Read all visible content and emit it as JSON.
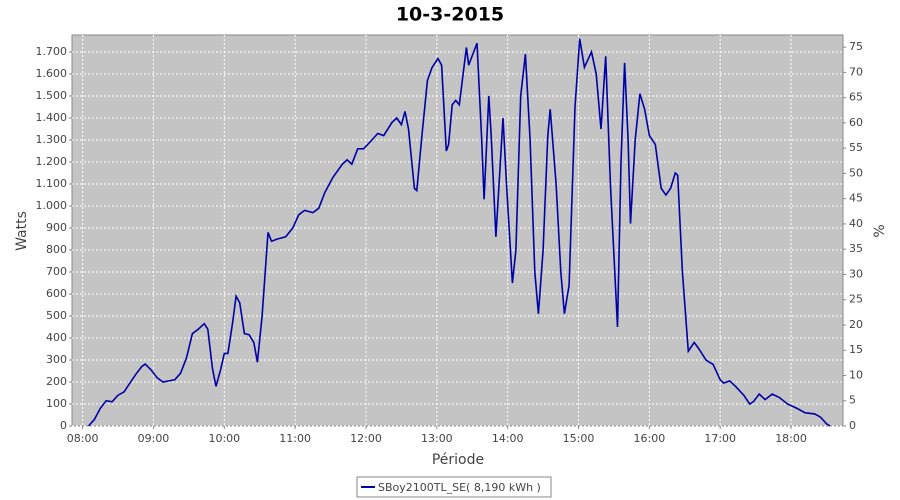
{
  "chart_data": {
    "type": "line",
    "title": "10-3-2015",
    "x_label": "Période",
    "y_label": "Watts",
    "y2_label": "%",
    "grid": true,
    "legend": "bottom",
    "xlim": [
      "07:51",
      "18:44"
    ],
    "xticks": [
      "08:00",
      "09:00",
      "10:00",
      "11:00",
      "12:00",
      "13:00",
      "14:00",
      "15:00",
      "16:00",
      "17:00",
      "18:00"
    ],
    "ylim": [
      0,
      1777
    ],
    "yticks": [
      0,
      100,
      200,
      300,
      400,
      500,
      600,
      700,
      800,
      900,
      {
        "value": 1000,
        "label": "1.000"
      },
      {
        "value": 1100,
        "label": "1.100"
      },
      {
        "value": 1200,
        "label": "1.200"
      },
      {
        "value": 1300,
        "label": "1.300"
      },
      {
        "value": 1400,
        "label": "1.400"
      },
      {
        "value": 1500,
        "label": "1.500"
      },
      {
        "value": 1600,
        "label": "1.600"
      },
      {
        "value": 1700,
        "label": "1.700"
      }
    ],
    "y2lim": [
      0,
      77.4
    ],
    "y2ticks": [
      0,
      5,
      10,
      15,
      20,
      25,
      30,
      35,
      40,
      45,
      50,
      55,
      60,
      65,
      70,
      75
    ],
    "x": [
      "08:05",
      "08:10",
      "08:15",
      "08:20",
      "08:25",
      "08:30",
      "08:35",
      "08:40",
      "08:45",
      "08:50",
      "08:53",
      "08:58",
      "09:03",
      "09:08",
      "09:13",
      "09:18",
      "09:23",
      "09:28",
      "09:33",
      "09:38",
      "09:43",
      "09:46",
      "09:50",
      "09:53",
      "09:57",
      "10:00",
      "10:03",
      "10:07",
      "10:10",
      "10:13",
      "10:17",
      "10:21",
      "10:25",
      "10:28",
      "10:32",
      "10:37",
      "10:40",
      "10:45",
      "10:52",
      "10:58",
      "11:03",
      "11:08",
      "11:15",
      "11:20",
      "11:25",
      "11:32",
      "11:40",
      "11:44",
      "11:48",
      "11:53",
      "11:58",
      "12:05",
      "12:10",
      "12:15",
      "12:22",
      "12:26",
      "12:30",
      "12:33",
      "12:36",
      "12:41",
      "12:43",
      "12:47",
      "12:52",
      "12:56",
      "13:01",
      "13:04",
      "13:08",
      "13:10",
      "13:13",
      "13:16",
      "13:19",
      "13:25",
      "13:27",
      "13:34",
      "13:38",
      "13:40",
      "13:44",
      "13:46",
      "13:50",
      "13:56",
      "13:59",
      "14:04",
      "14:07",
      "14:11",
      "14:15",
      "14:19",
      "14:23",
      "14:26",
      "14:30",
      "14:34",
      "14:36",
      "14:41",
      "14:45",
      "14:48",
      "14:52",
      "14:57",
      "15:01",
      "15:05",
      "15:11",
      "15:15",
      "15:19",
      "15:23",
      "15:27",
      "15:33",
      "15:36",
      "15:39",
      "15:42",
      "15:44",
      "15:48",
      "15:52",
      "15:56",
      "16:00",
      "16:05",
      "16:10",
      "16:14",
      "16:18",
      "16:22",
      "16:24",
      "16:28",
      "16:33",
      "16:38",
      "16:42",
      "16:48",
      "16:54",
      "17:00",
      "17:03",
      "17:08",
      "17:13",
      "17:20",
      "17:25",
      "17:28",
      "17:33",
      "17:38",
      "17:44",
      "17:50",
      "17:57",
      "18:05",
      "18:12",
      "18:20",
      "18:25",
      "18:30",
      "18:33"
    ],
    "series": [
      {
        "name": "SBoy2100TL_SE( 8,190 kWh )",
        "color": "#0000a8",
        "values": [
          0,
          30,
          80,
          115,
          110,
          140,
          155,
          195,
          235,
          270,
          282,
          255,
          220,
          200,
          205,
          210,
          240,
          310,
          420,
          440,
          465,
          440,
          260,
          180,
          260,
          330,
          330,
          470,
          590,
          560,
          420,
          415,
          380,
          290,
          500,
          880,
          840,
          850,
          860,
          900,
          960,
          980,
          970,
          990,
          1060,
          1130,
          1190,
          1210,
          1190,
          1260,
          1260,
          1300,
          1330,
          1320,
          1380,
          1400,
          1370,
          1430,
          1350,
          1080,
          1070,
          1300,
          1570,
          1630,
          1670,
          1640,
          1250,
          1280,
          1460,
          1480,
          1460,
          1720,
          1640,
          1740,
          1300,
          1030,
          1500,
          1320,
          860,
          1400,
          1100,
          650,
          800,
          1500,
          1690,
          1300,
          700,
          510,
          800,
          1320,
          1440,
          1100,
          700,
          510,
          640,
          1450,
          1760,
          1630,
          1700,
          1600,
          1350,
          1680,
          1100,
          450,
          1200,
          1650,
          1300,
          920,
          1300,
          1510,
          1440,
          1320,
          1280,
          1080,
          1050,
          1080,
          1150,
          1140,
          700,
          340,
          380,
          350,
          300,
          280,
          210,
          195,
          205,
          180,
          140,
          100,
          110,
          145,
          120,
          145,
          130,
          100,
          80,
          60,
          55,
          40,
          10,
          0
        ]
      }
    ]
  }
}
